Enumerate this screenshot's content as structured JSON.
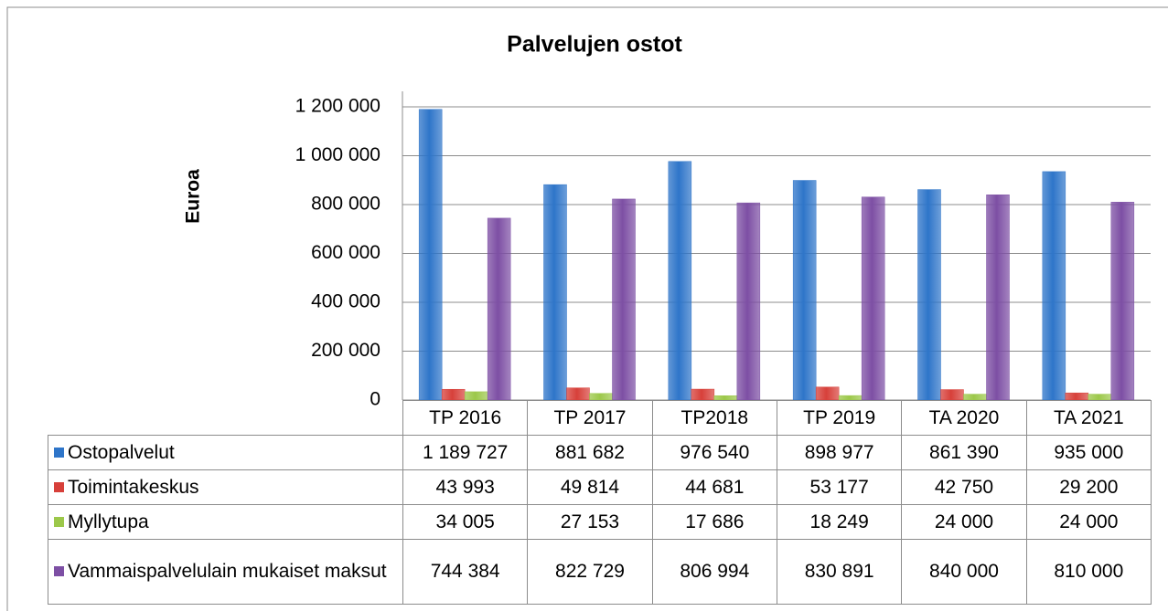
{
  "chart_data": {
    "type": "bar",
    "title": "Palvelujen ostot",
    "y_label": "Euroa",
    "categories": [
      "TP 2016",
      "TP 2017",
      "TP2018",
      "TP 2019",
      "TA 2020",
      "TA 2021"
    ],
    "series": [
      {
        "name": "Ostopalvelut",
        "color": "#2e75c9",
        "values": [
          1189727,
          881682,
          976540,
          898977,
          861390,
          935000
        ],
        "value_labels": [
          "1 189 727",
          "881 682",
          "976 540",
          "898 977",
          "861 390",
          "935 000"
        ]
      },
      {
        "name": "Toimintakeskus",
        "color": "#d7403a",
        "values": [
          43993,
          49814,
          44681,
          53177,
          42750,
          29200
        ],
        "value_labels": [
          "43 993",
          "49 814",
          "44 681",
          "53 177",
          "42 750",
          "29 200"
        ]
      },
      {
        "name": "Myllytupa",
        "color": "#9cc84a",
        "values": [
          34005,
          27153,
          17686,
          18249,
          24000,
          24000
        ],
        "value_labels": [
          "34 005",
          "27 153",
          "17 686",
          "18 249",
          "24 000",
          "24 000"
        ]
      },
      {
        "name": "Vammaispalvelulain mukaiset maksut",
        "color": "#7d4fa4",
        "values": [
          744384,
          822729,
          806994,
          830891,
          840000,
          810000
        ],
        "value_labels": [
          "744 384",
          "822 729",
          "806 994",
          "830 891",
          "840 000",
          "810 000"
        ]
      }
    ],
    "ylim": [
      0,
      1200000
    ],
    "yticks": [
      0,
      {
        "value": 200000,
        "label": "200 000"
      },
      {
        "value": 400000,
        "label": "400 000"
      },
      {
        "value": 600000,
        "label": "600 000"
      },
      {
        "value": 800000,
        "label": "800 000"
      },
      {
        "value": 1000000,
        "label": "1 000 000"
      },
      {
        "value": 1200000,
        "label": "1 200 000"
      }
    ],
    "grid": true
  }
}
